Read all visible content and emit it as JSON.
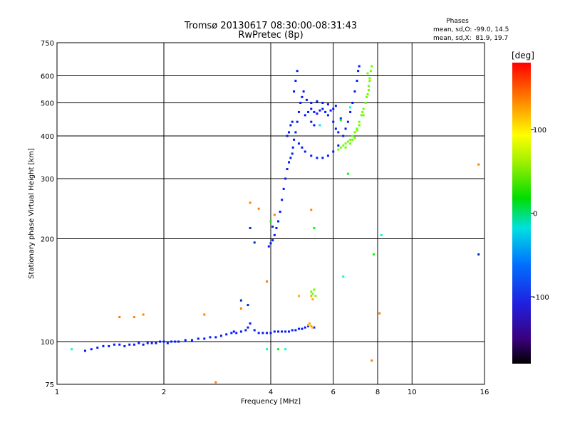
{
  "chart_data": {
    "type": "scatter",
    "title": "Tromsø 20130617 08:30:00-08:31:43",
    "subtitle": "RwPretec (8p)",
    "xlabel": "Frequency [MHz]",
    "ylabel": "Stationary phase Virtual Height [km]",
    "x_scale": "log",
    "y_scale": "log",
    "xlim": [
      1,
      16
    ],
    "ylim": [
      75,
      750
    ],
    "x_ticks": [
      1,
      2,
      4,
      6,
      8,
      10,
      16
    ],
    "x_tick_labels": [
      "1",
      "2",
      "4",
      "6",
      "8",
      "10",
      "16"
    ],
    "x_gridlines": [
      2,
      4,
      6,
      8,
      10
    ],
    "y_ticks": [
      75,
      100,
      200,
      300,
      400,
      500,
      600,
      750
    ],
    "y_tick_labels": [
      "75",
      "100",
      "200",
      "300",
      "400",
      "500",
      "600",
      "750"
    ],
    "y_gridlines": [
      100,
      200,
      300,
      400,
      500,
      600
    ],
    "grid": true,
    "stats": {
      "heading": "Phases",
      "line_o": "mean, sd,O: -99.0, 14.5",
      "line_x": "mean, sd,X:  81.9, 19.7"
    },
    "colorbar": {
      "unit_label": "[deg]",
      "range": [
        -180,
        180
      ],
      "ticks": [
        100,
        0,
        -100
      ],
      "tick_labels": [
        "100",
        "0",
        "-100"
      ]
    },
    "series": [
      {
        "component": "O",
        "phase": -100,
        "points": [
          [
            1.2,
            94
          ],
          [
            1.25,
            95
          ],
          [
            1.3,
            96
          ],
          [
            1.35,
            97
          ],
          [
            1.4,
            97
          ],
          [
            1.45,
            98
          ],
          [
            1.5,
            98
          ],
          [
            1.55,
            97
          ],
          [
            1.6,
            98
          ],
          [
            1.65,
            98
          ],
          [
            1.7,
            99
          ],
          [
            1.75,
            98
          ],
          [
            1.8,
            99
          ],
          [
            1.85,
            99
          ],
          [
            1.9,
            99
          ],
          [
            1.95,
            100
          ],
          [
            2.0,
            100
          ],
          [
            2.05,
            99
          ],
          [
            2.1,
            100
          ],
          [
            2.15,
            100
          ],
          [
            2.2,
            100
          ],
          [
            2.3,
            101
          ],
          [
            2.4,
            101
          ],
          [
            2.5,
            102
          ],
          [
            2.6,
            102
          ],
          [
            2.7,
            103
          ],
          [
            2.8,
            103
          ],
          [
            2.9,
            104
          ],
          [
            3.0,
            105
          ],
          [
            3.1,
            106
          ],
          [
            3.15,
            107
          ],
          [
            3.2,
            106
          ],
          [
            3.3,
            107
          ],
          [
            3.4,
            108
          ],
          [
            3.45,
            110
          ],
          [
            3.5,
            113
          ],
          [
            3.6,
            108
          ],
          [
            3.7,
            106
          ],
          [
            3.8,
            106
          ],
          [
            3.9,
            106
          ],
          [
            4.0,
            106
          ],
          [
            4.1,
            107
          ],
          [
            4.2,
            107
          ],
          [
            4.3,
            107
          ],
          [
            4.4,
            107
          ],
          [
            4.5,
            107
          ],
          [
            4.6,
            108
          ],
          [
            4.7,
            108
          ],
          [
            4.8,
            109
          ],
          [
            4.9,
            109
          ],
          [
            5.0,
            110
          ],
          [
            5.1,
            111
          ],
          [
            5.3,
            110
          ],
          [
            3.95,
            190
          ],
          [
            4.0,
            194
          ],
          [
            4.05,
            198
          ],
          [
            4.1,
            205
          ],
          [
            4.15,
            215
          ],
          [
            4.2,
            225
          ],
          [
            4.25,
            240
          ],
          [
            4.3,
            260
          ],
          [
            4.35,
            280
          ],
          [
            4.4,
            300
          ],
          [
            4.45,
            320
          ],
          [
            4.5,
            335
          ],
          [
            4.55,
            345
          ],
          [
            4.6,
            355
          ],
          [
            4.62,
            370
          ],
          [
            4.65,
            390
          ],
          [
            4.7,
            410
          ],
          [
            4.75,
            440
          ],
          [
            4.8,
            470
          ],
          [
            4.85,
            500
          ],
          [
            4.9,
            520
          ],
          [
            4.95,
            540
          ],
          [
            4.75,
            620
          ],
          [
            4.7,
            580
          ],
          [
            4.65,
            540
          ],
          [
            4.8,
            380
          ],
          [
            4.9,
            370
          ],
          [
            5.0,
            360
          ],
          [
            5.2,
            350
          ],
          [
            5.4,
            345
          ],
          [
            5.6,
            345
          ],
          [
            5.8,
            350
          ],
          [
            6.0,
            360
          ],
          [
            6.2,
            375
          ],
          [
            6.4,
            400
          ],
          [
            6.5,
            420
          ],
          [
            6.6,
            440
          ],
          [
            6.7,
            470
          ],
          [
            6.8,
            500
          ],
          [
            6.9,
            540
          ],
          [
            7.0,
            580
          ],
          [
            7.05,
            620
          ],
          [
            7.1,
            640
          ],
          [
            5.0,
            460
          ],
          [
            5.1,
            470
          ],
          [
            5.2,
            480
          ],
          [
            5.3,
            470
          ],
          [
            5.4,
            465
          ],
          [
            5.5,
            475
          ],
          [
            5.6,
            480
          ],
          [
            5.7,
            470
          ],
          [
            5.8,
            460
          ],
          [
            5.9,
            475
          ],
          [
            6.0,
            480
          ],
          [
            6.1,
            490
          ],
          [
            5.05,
            510
          ],
          [
            5.2,
            500
          ],
          [
            5.4,
            505
          ],
          [
            5.6,
            500
          ],
          [
            5.8,
            495
          ],
          [
            6.0,
            440
          ],
          [
            6.1,
            420
          ],
          [
            6.2,
            410
          ],
          [
            6.3,
            450
          ],
          [
            5.2,
            440
          ],
          [
            5.3,
            430
          ],
          [
            5.5,
            430
          ],
          [
            4.55,
            430
          ],
          [
            4.6,
            440
          ],
          [
            4.45,
            400
          ],
          [
            4.5,
            410
          ]
        ]
      },
      {
        "component": "X",
        "phase": 85,
        "points": [
          [
            6.2,
            365
          ],
          [
            6.3,
            370
          ],
          [
            6.4,
            375
          ],
          [
            6.5,
            380
          ],
          [
            6.6,
            385
          ],
          [
            6.7,
            390
          ],
          [
            6.8,
            400
          ],
          [
            6.9,
            410
          ],
          [
            7.0,
            420
          ],
          [
            7.1,
            440
          ],
          [
            7.2,
            460
          ],
          [
            7.3,
            480
          ],
          [
            7.4,
            500
          ],
          [
            7.5,
            530
          ],
          [
            7.55,
            560
          ],
          [
            7.6,
            590
          ],
          [
            7.65,
            620
          ],
          [
            7.7,
            640
          ],
          [
            7.5,
            610
          ],
          [
            7.3,
            460
          ],
          [
            7.1,
            430
          ],
          [
            6.9,
            395
          ],
          [
            6.7,
            380
          ],
          [
            6.5,
            370
          ],
          [
            7.6,
            580
          ],
          [
            7.55,
            545
          ],
          [
            7.45,
            520
          ],
          [
            7.25,
            470
          ],
          [
            7.0,
            415
          ],
          [
            6.8,
            390
          ],
          [
            5.2,
            140
          ],
          [
            5.25,
            138
          ],
          [
            5.3,
            142
          ],
          [
            5.35,
            136
          ]
        ]
      },
      {
        "component": "scattered",
        "phase": 140,
        "points": [
          [
            5.1,
            112
          ],
          [
            5.15,
            113
          ],
          [
            5.2,
            111
          ],
          [
            5.25,
            110
          ],
          [
            5.2,
            136
          ],
          [
            5.25,
            133
          ],
          [
            4.8,
            136
          ]
        ]
      },
      {
        "component": "scattered",
        "phase": 150,
        "points": [
          [
            1.5,
            118
          ],
          [
            1.65,
            118
          ],
          [
            1.75,
            120
          ],
          [
            2.6,
            120
          ],
          [
            3.3,
            125
          ],
          [
            3.9,
            150
          ],
          [
            8.1,
            121
          ],
          [
            15.4,
            330
          ],
          [
            3.7,
            245
          ],
          [
            4.1,
            235
          ],
          [
            5.2,
            243
          ],
          [
            7.7,
            88
          ],
          [
            2.8,
            76
          ],
          [
            3.5,
            255
          ]
        ]
      },
      {
        "component": "scattered",
        "phase": 10,
        "points": [
          [
            1.1,
            95
          ],
          [
            8.2,
            205
          ],
          [
            6.4,
            155
          ],
          [
            5.5,
            430
          ],
          [
            3.9,
            95
          ],
          [
            4.4,
            95
          ],
          [
            6.7,
            485
          ]
        ]
      },
      {
        "component": "scattered",
        "phase": 60,
        "points": [
          [
            5.3,
            215
          ],
          [
            4.0,
            225
          ],
          [
            7.8,
            180
          ],
          [
            4.2,
            95
          ],
          [
            6.3,
            445
          ],
          [
            6.6,
            310
          ]
        ]
      },
      {
        "component": "scattered",
        "phase": -150,
        "points": [
          [
            3.5,
            215
          ],
          [
            3.6,
            195
          ],
          [
            15.4,
            180
          ],
          [
            3.3,
            132
          ],
          [
            3.45,
            128
          ],
          [
            4.05,
            217
          ]
        ]
      }
    ]
  }
}
